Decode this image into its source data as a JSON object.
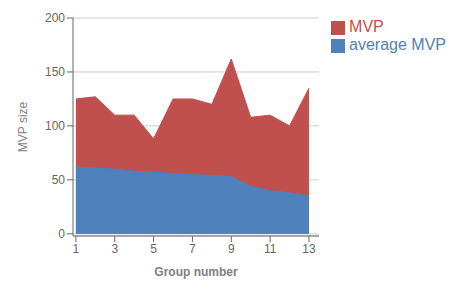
{
  "chart_data": {
    "type": "area",
    "x": [
      1,
      2,
      3,
      4,
      5,
      6,
      7,
      8,
      9,
      10,
      11,
      12,
      13
    ],
    "series": [
      {
        "name": "MVP",
        "color": "#C0504D",
        "values": [
          125,
          127,
          110,
          110,
          88,
          125,
          125,
          120,
          162,
          108,
          110,
          100,
          135
        ]
      },
      {
        "name": "average MVP",
        "color": "#4F81BD",
        "values": [
          62,
          61,
          60,
          58,
          57,
          56,
          55,
          54,
          53,
          44,
          40,
          38,
          35
        ]
      }
    ],
    "xlabel": "Group number",
    "ylabel": "MVP size",
    "xlim": [
      0.85,
      13.52
    ],
    "xticks": [
      1,
      3,
      5,
      7,
      9,
      11,
      13
    ],
    "ylim": [
      -2,
      200
    ],
    "yticks": [
      0,
      50,
      100,
      150,
      200
    ],
    "grid": true,
    "legend": "right"
  }
}
